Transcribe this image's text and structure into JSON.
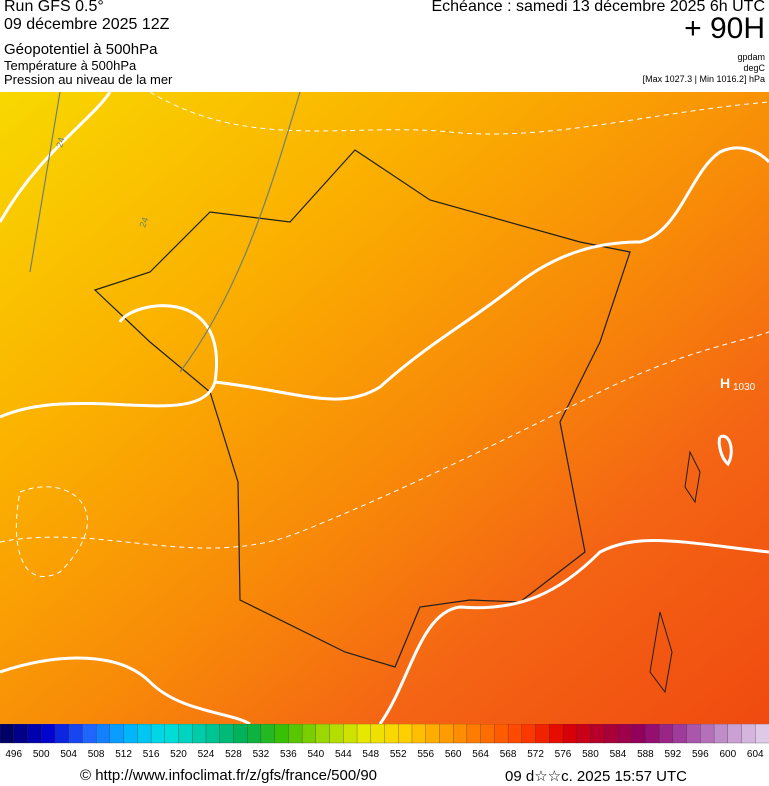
{
  "header": {
    "run": "Run GFS 0.5°",
    "date": "09 décembre 2025 12Z",
    "line1": "Géopotentiel à 500hPa",
    "line2": "Température à 500hPa",
    "line3": "Pression au niveau de la mer",
    "echeance": "Echéance : samedi 13 décembre 2025 6h UTC",
    "horizon": "+ 90H",
    "unit1": "gpdam",
    "unit2": "degC",
    "pressure_range": "[Max 1027.3 | Min 1016.2] hPa"
  },
  "map": {
    "contour_labels": [
      "24",
      "24"
    ],
    "high_marker": "H",
    "high_value": "1030"
  },
  "colorbar": {
    "labels": [
      496,
      500,
      504,
      508,
      512,
      516,
      520,
      524,
      528,
      532,
      536,
      540,
      544,
      548,
      552,
      556,
      560,
      564,
      568,
      572,
      576,
      580,
      584,
      588,
      592,
      596,
      600,
      604
    ],
    "colors": [
      "#000066",
      "#0000cc",
      "#2060ff",
      "#00b0ff",
      "#00e0e0",
      "#00c8a0",
      "#00b050",
      "#40c000",
      "#a0d800",
      "#e8e800",
      "#ffd000",
      "#ffa000",
      "#ff7000",
      "#ff4000",
      "#e00000",
      "#b00030",
      "#900060",
      "#a040a0",
      "#c090c8",
      "#e0c8e8"
    ]
  },
  "footer": {
    "url": "© http://www.infoclimat.fr/z/gfs/france/500/90",
    "timestamp": "09 d☆☆c. 2025 15:57 UTC"
  }
}
